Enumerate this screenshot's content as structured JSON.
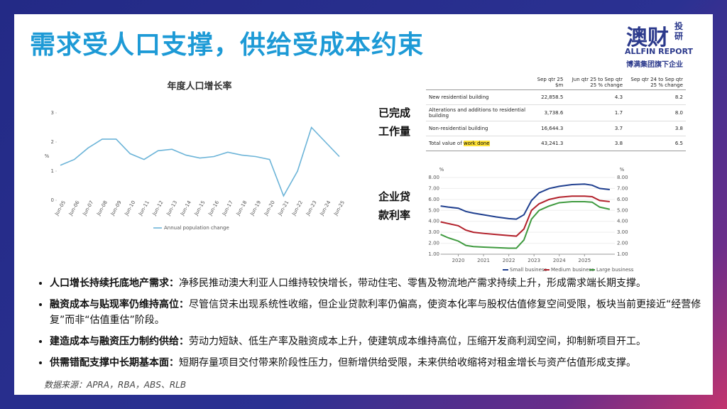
{
  "title": "需求受人口支撑，供给受成本约束",
  "logo": {
    "main": "澳财",
    "side": [
      "投",
      "研"
    ],
    "brand": "ALLFIN REPORT",
    "tagline": "博满集团旗下企业"
  },
  "chart_data": [
    {
      "type": "line",
      "title": "年度人口增长率",
      "ylabel": "%",
      "categories": [
        "Jun-05",
        "Jun-06",
        "Jun-07",
        "Jun-08",
        "Jun-09",
        "Jun-10",
        "Jun-11",
        "Jun-12",
        "Jun-13",
        "Jun-14",
        "Jun-15",
        "Jun-16",
        "Jun-17",
        "Jun-18",
        "Jun-19",
        "Jun-20",
        "Jun-21",
        "Jun-22",
        "Jun-23",
        "Jun-24",
        "Jun-25"
      ],
      "series": [
        {
          "name": "Annual population change",
          "color": "#6cb4d8",
          "values": [
            1.2,
            1.4,
            1.8,
            2.1,
            2.1,
            1.6,
            1.4,
            1.7,
            1.75,
            1.55,
            1.45,
            1.5,
            1.65,
            1.55,
            1.5,
            1.4,
            0.15,
            1.0,
            2.5,
            2.0,
            1.5
          ]
        }
      ],
      "ylim": [
        0,
        3
      ],
      "yticks": [
        0,
        1,
        2,
        3
      ],
      "legend": "bottom"
    },
    {
      "type": "line",
      "ylabel": "%",
      "y2label": "%",
      "x": [
        2019.3,
        2019.6,
        2020.0,
        2020.3,
        2020.6,
        2021.0,
        2021.5,
        2022.0,
        2022.3,
        2022.6,
        2022.9,
        2023.2,
        2023.6,
        2024.0,
        2024.5,
        2025.0,
        2025.3,
        2025.6,
        2026.0
      ],
      "series": [
        {
          "name": "Small business",
          "color": "#1f3f8f",
          "values": [
            5.4,
            5.3,
            5.2,
            4.9,
            4.75,
            4.6,
            4.4,
            4.25,
            4.2,
            4.6,
            5.9,
            6.6,
            7.0,
            7.2,
            7.35,
            7.4,
            7.3,
            7.0,
            6.9
          ]
        },
        {
          "name": "Medium business",
          "color": "#b2202a",
          "values": [
            3.95,
            3.8,
            3.6,
            3.2,
            3.0,
            2.9,
            2.8,
            2.7,
            2.65,
            3.3,
            5.0,
            5.6,
            6.0,
            6.2,
            6.3,
            6.3,
            6.25,
            5.9,
            5.8
          ]
        },
        {
          "name": "Large business",
          "color": "#3f9a3f",
          "values": [
            2.8,
            2.5,
            2.2,
            1.8,
            1.7,
            1.65,
            1.6,
            1.55,
            1.55,
            2.3,
            4.2,
            5.0,
            5.4,
            5.7,
            5.8,
            5.8,
            5.75,
            5.3,
            5.1
          ]
        }
      ],
      "xlim": [
        2019.3,
        2026.2
      ],
      "xticks": [
        2020,
        2021,
        2022,
        2023,
        2024,
        2025
      ],
      "ylim": [
        1,
        8
      ],
      "yticks": [
        {
          "value": 1,
          "label": "1.00"
        },
        {
          "value": 2,
          "label": "2.00"
        },
        {
          "value": 3,
          "label": "3.00"
        },
        {
          "value": 4,
          "label": "4.00"
        },
        {
          "value": 5,
          "label": "5.00"
        },
        {
          "value": 6,
          "label": "6.00"
        },
        {
          "value": 7,
          "label": "7.00"
        },
        {
          "value": 8,
          "label": "8.00"
        }
      ],
      "legend": "bottom"
    }
  ],
  "table": {
    "header": [
      "Sep qtr 25 $m",
      "Jun qtr 25 to Sep qtr 25 % change",
      "Sep qtr 24 to Sep qtr 25 % change"
    ],
    "rows": [
      [
        "New residential building",
        "22,858.5",
        "4.3",
        "8.2"
      ],
      [
        "Alterations and additions to residential building",
        "3,738.6",
        "1.7",
        "8.0"
      ],
      [
        "Non-residential building",
        "16,644.3",
        "3.7",
        "3.8"
      ],
      [
        "Total value of",
        "43,241.3",
        "3.8",
        "6.5"
      ]
    ],
    "highlight": "work done"
  },
  "labels": {
    "table": [
      "已完成",
      "工作量"
    ],
    "rates": [
      "企业贷",
      "款利率"
    ]
  },
  "bullets": [
    {
      "lead": "人口增长持续托底地产需求：",
      "text": "净移民推动澳大利亚人口维持较快增长，带动住宅、零售及物流地产需求持续上升，形成需求端长期支撑。"
    },
    {
      "lead": "融资成本与贴现率仍维持高位：",
      "text": "尽管信贷未出现系统性收缩，但企业贷款利率仍偏高，使资本化率与股权估值修复空间受限，板块当前更接近“经营修复”而非“估值重估”阶段。"
    },
    {
      "lead": "建造成本与融资压力制约供给：",
      "text": "劳动力短缺、低生产率及融资成本上升，使建筑成本维持高位，压缩开发商利润空间，抑制新项目开工。"
    },
    {
      "lead": "供需错配支撑中长期基本面：",
      "text": "短期存量项目交付带来阶段性压力，但新增供给受限，未来供给收缩将对租金增长与资产估值形成支撑。"
    }
  ],
  "source": "数据来源：APRA，RBA，ABS、RLB"
}
